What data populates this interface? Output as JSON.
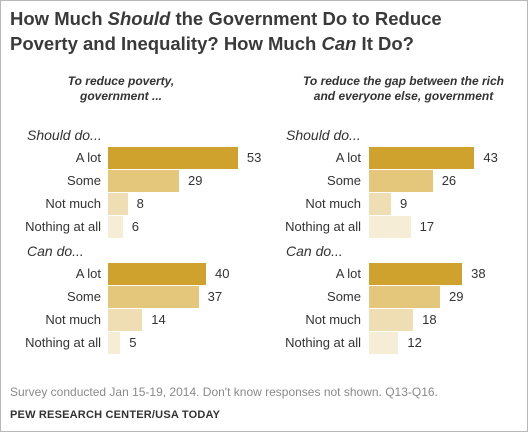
{
  "title": {
    "part1": "How Much ",
    "part2": "Should",
    "part3": " the Government Do to Reduce",
    "part4": "Poverty and Inequality? How Much ",
    "part5": "Can",
    "part6": " It Do?"
  },
  "note": "Survey conducted Jan 15-19, 2014. Don't know responses not shown. Q13-Q16.",
  "source": "PEW RESEARCH CENTER/USA TODAY",
  "colors": [
    "#cfa22d",
    "#e4c77a",
    "#efdeb3",
    "#f6edd7"
  ],
  "chart_data": [
    {
      "type": "bar",
      "title": "To reduce poverty, government ...",
      "categories": [
        "A lot",
        "Some",
        "Not much",
        "Nothing at all"
      ],
      "series": [
        {
          "name": "Should do...",
          "values": [
            53,
            29,
            8,
            6
          ]
        },
        {
          "name": "Can do...",
          "values": [
            40,
            37,
            14,
            5
          ]
        }
      ]
    },
    {
      "type": "bar",
      "title": "To reduce the gap between the rich and everyone else, government",
      "categories": [
        "A lot",
        "Some",
        "Not much",
        "Nothing at all"
      ],
      "series": [
        {
          "name": "Should do...",
          "values": [
            43,
            26,
            9,
            17
          ]
        },
        {
          "name": "Can do...",
          "values": [
            38,
            29,
            18,
            12
          ]
        }
      ]
    }
  ]
}
